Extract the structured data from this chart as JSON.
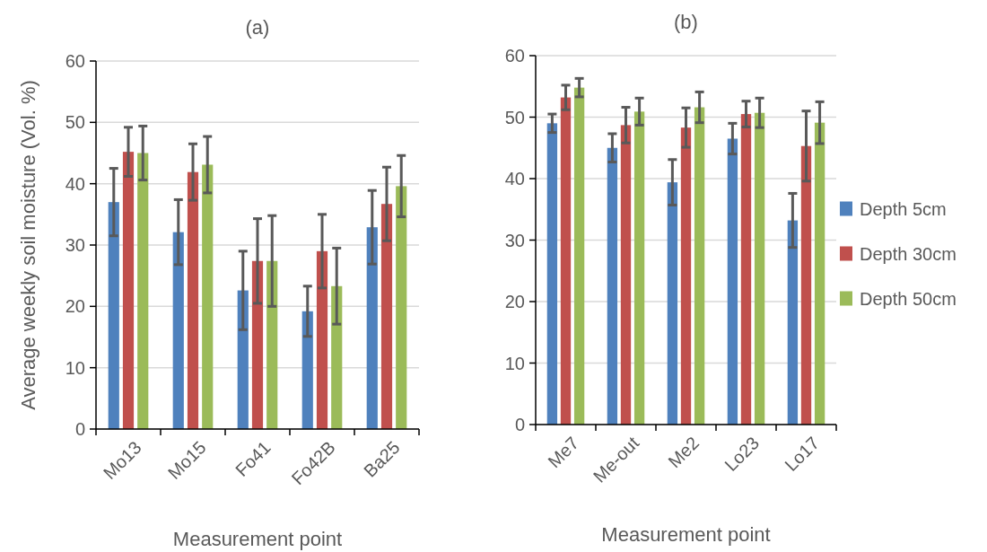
{
  "chart_data": [
    {
      "type": "bar",
      "title": "(a)",
      "xlabel": "Measurement point",
      "ylabel": "Average weekly soil moisture (Vol. %)",
      "categories": [
        "Mo13",
        "Mo15",
        "Fo41",
        "Fo42B",
        "Ba25"
      ],
      "ylim": [
        0,
        60
      ],
      "yticks": [
        0,
        10,
        20,
        30,
        40,
        50,
        60
      ],
      "grid": "y",
      "legend": false,
      "series": [
        {
          "color": "#4f81bd",
          "values": [
            37.0,
            32.1,
            22.6,
            19.2,
            32.9
          ],
          "errors": [
            5.5,
            5.3,
            6.4,
            4.1,
            6.0
          ]
        },
        {
          "color": "#c0504d",
          "values": [
            45.2,
            41.9,
            27.4,
            29.0,
            36.7
          ],
          "errors": [
            4.0,
            4.6,
            6.9,
            6.0,
            6.0
          ]
        },
        {
          "color": "#9bbb59",
          "values": [
            45.0,
            43.1,
            27.4,
            23.3,
            39.6
          ],
          "errors": [
            4.4,
            4.6,
            7.4,
            6.2,
            5.0
          ]
        }
      ]
    },
    {
      "type": "bar",
      "title": "(b)",
      "xlabel": "Measurement point",
      "categories": [
        "Me7",
        "Me-out",
        "Me2",
        "Lo23",
        "Lo17"
      ],
      "ylim": [
        0,
        60
      ],
      "yticks": [
        0,
        10,
        20,
        30,
        40,
        50,
        60
      ],
      "grid": "y",
      "legend": "right",
      "series": [
        {
          "name": "Depth 5cm",
          "color": "#4f81bd",
          "values": [
            49.0,
            45.0,
            39.4,
            46.5,
            33.2
          ],
          "errors": [
            1.5,
            2.3,
            3.7,
            2.5,
            4.4
          ]
        },
        {
          "name": "Depth 30cm",
          "color": "#c0504d",
          "values": [
            53.2,
            48.7,
            48.3,
            50.5,
            45.3
          ],
          "errors": [
            2.0,
            2.9,
            3.2,
            2.1,
            5.7
          ]
        },
        {
          "name": "Depth 50cm",
          "color": "#9bbb59",
          "values": [
            54.8,
            50.9,
            51.6,
            50.7,
            49.1
          ],
          "errors": [
            1.5,
            2.2,
            2.5,
            2.4,
            3.4
          ]
        }
      ]
    }
  ]
}
